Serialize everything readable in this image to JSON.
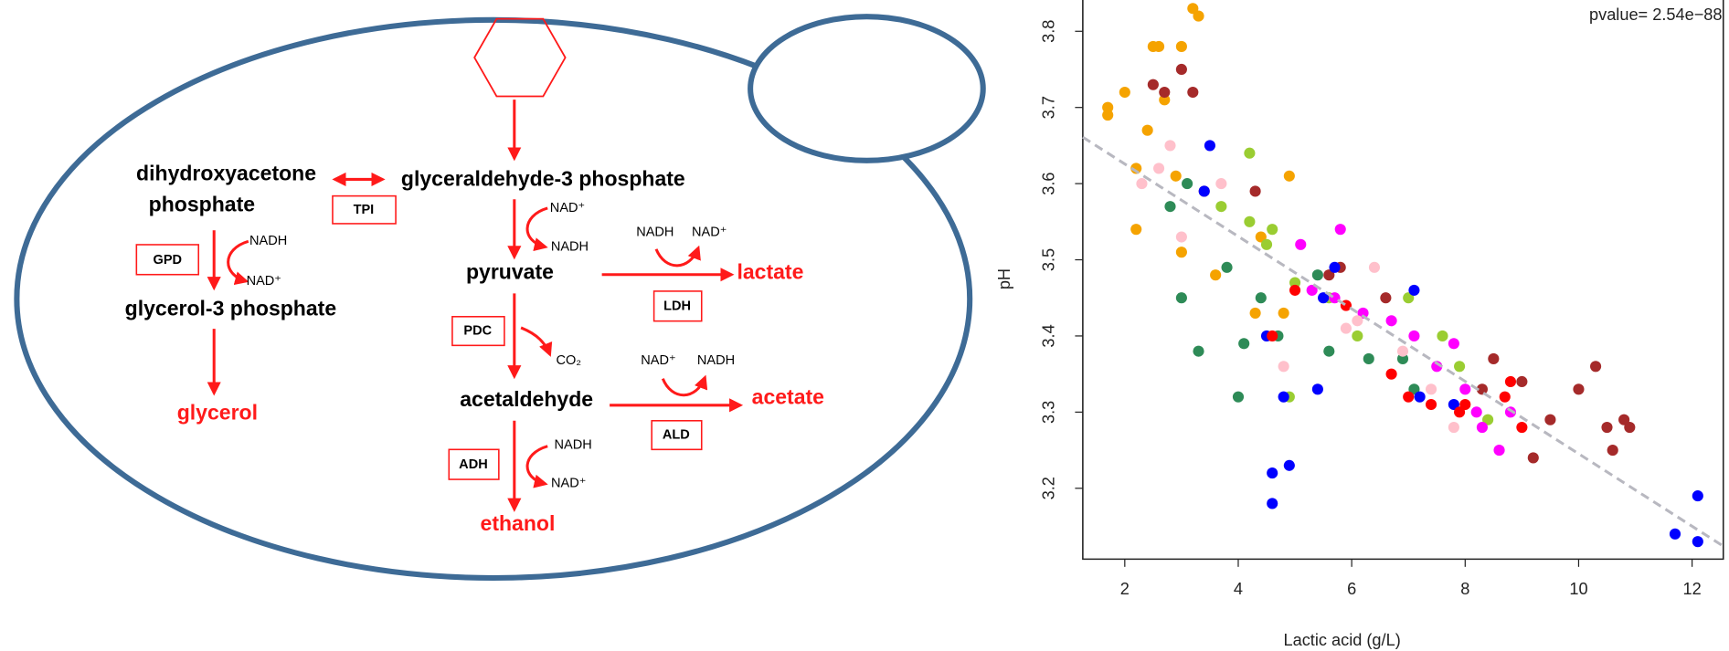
{
  "diagram": {
    "nodes": [
      "dihydroxyacetone",
      "phosphate",
      "glyceraldehyde-3 phosphate",
      "glycerol-3 phosphate",
      "glycerol",
      "pyruvate",
      "lactate",
      "acetaldehyde",
      "acetate",
      "ethanol"
    ],
    "enzymes": [
      "TPI",
      "GPD",
      "LDH",
      "PDC",
      "ALD",
      "ADH"
    ],
    "cofactors": [
      "NAD⁺",
      "NADH",
      "NADH",
      "NAD⁺",
      "NADH",
      "NAD⁺",
      "CO₂",
      "NAD⁺",
      "NADH",
      "NADH",
      "NAD⁺"
    ]
  },
  "chart_data": {
    "type": "scatter",
    "x_label": "Lactic acid (g/L)",
    "y_label": "pH",
    "annotation": "pvalue= 2.54e−88",
    "xlim": [
      1.26,
      12.55
    ],
    "xticks": [
      2,
      4,
      6,
      8,
      10,
      12
    ],
    "ylim": [
      3.107,
      3.844
    ],
    "yticks": [
      3.2,
      3.3,
      3.4,
      3.5,
      3.6,
      3.7,
      3.8
    ],
    "fit": {
      "color": "#b8b8c0",
      "x": [
        1.26,
        12.55
      ],
      "y": [
        3.661,
        3.124
      ]
    },
    "series": [
      {
        "color": "#f5a300",
        "x": [
          1.7,
          1.7,
          2.0,
          2.2,
          2.4,
          2.5,
          2.6,
          2.7,
          3.0,
          3.2,
          3.3,
          2.2,
          2.9,
          3.6,
          4.4,
          4.9,
          4.8,
          3.0,
          4.3
        ],
        "y": [
          3.69,
          3.7,
          3.72,
          3.54,
          3.67,
          3.78,
          3.78,
          3.71,
          3.78,
          3.83,
          3.82,
          3.62,
          3.61,
          3.48,
          3.53,
          3.61,
          3.43,
          3.51,
          3.43
        ]
      },
      {
        "color": "#a52a2a",
        "x": [
          2.5,
          2.7,
          3.0,
          3.2,
          3.4,
          4.3,
          5.6,
          5.8,
          6.6,
          8.5,
          9.0,
          9.2,
          9.5,
          10.0,
          10.3,
          10.5,
          10.6,
          10.9,
          10.8,
          8.3
        ],
        "y": [
          3.73,
          3.72,
          3.75,
          3.72,
          3.59,
          3.59,
          3.48,
          3.49,
          3.45,
          3.37,
          3.34,
          3.24,
          3.29,
          3.33,
          3.36,
          3.28,
          3.25,
          3.28,
          3.29,
          3.33
        ]
      },
      {
        "color": "#2e8b57",
        "x": [
          2.8,
          3.1,
          3.0,
          3.3,
          3.8,
          4.0,
          4.4,
          4.7,
          5.4,
          5.6,
          6.3,
          7.1,
          4.1,
          6.9
        ],
        "y": [
          3.57,
          3.6,
          3.45,
          3.38,
          3.49,
          3.32,
          3.45,
          3.4,
          3.48,
          3.38,
          3.37,
          3.33,
          3.39,
          3.37
        ]
      },
      {
        "color": "#9acd32",
        "x": [
          3.7,
          4.2,
          4.2,
          4.5,
          4.6,
          4.9,
          5.6,
          6.1,
          7.0,
          7.6,
          7.9,
          8.4,
          5.0
        ],
        "y": [
          3.57,
          3.64,
          3.55,
          3.52,
          3.54,
          3.32,
          3.45,
          3.4,
          3.45,
          3.4,
          3.36,
          3.29,
          3.47
        ]
      },
      {
        "color": "#0000ff",
        "x": [
          3.4,
          3.5,
          4.5,
          4.6,
          4.6,
          4.9,
          4.8,
          5.4,
          5.7,
          7.1,
          7.2,
          7.8,
          11.7,
          12.1,
          12.1,
          5.5
        ],
        "y": [
          3.59,
          3.65,
          3.4,
          3.22,
          3.18,
          3.23,
          3.32,
          3.33,
          3.49,
          3.46,
          3.32,
          3.31,
          3.14,
          3.13,
          3.19,
          3.45
        ]
      },
      {
        "color": "#ff0000",
        "x": [
          4.6,
          5.0,
          5.9,
          6.7,
          7.0,
          7.4,
          7.9,
          8.0,
          8.7,
          8.8,
          9.0
        ],
        "y": [
          3.4,
          3.46,
          3.44,
          3.35,
          3.32,
          3.31,
          3.3,
          3.31,
          3.32,
          3.34,
          3.28
        ]
      },
      {
        "color": "#ff00ff",
        "x": [
          5.1,
          5.8,
          5.7,
          6.2,
          6.7,
          7.1,
          7.5,
          7.8,
          8.0,
          8.2,
          8.3,
          8.6,
          8.8,
          5.3
        ],
        "y": [
          3.52,
          3.54,
          3.45,
          3.43,
          3.42,
          3.4,
          3.36,
          3.39,
          3.33,
          3.3,
          3.28,
          3.25,
          3.3,
          3.46
        ]
      },
      {
        "color": "#ffc0cb",
        "x": [
          2.3,
          2.6,
          2.8,
          3.0,
          3.7,
          4.8,
          6.1,
          6.4,
          6.9,
          7.4,
          7.8,
          5.9
        ],
        "y": [
          3.6,
          3.62,
          3.65,
          3.53,
          3.6,
          3.36,
          3.42,
          3.49,
          3.38,
          3.33,
          3.28,
          3.41
        ]
      }
    ]
  }
}
